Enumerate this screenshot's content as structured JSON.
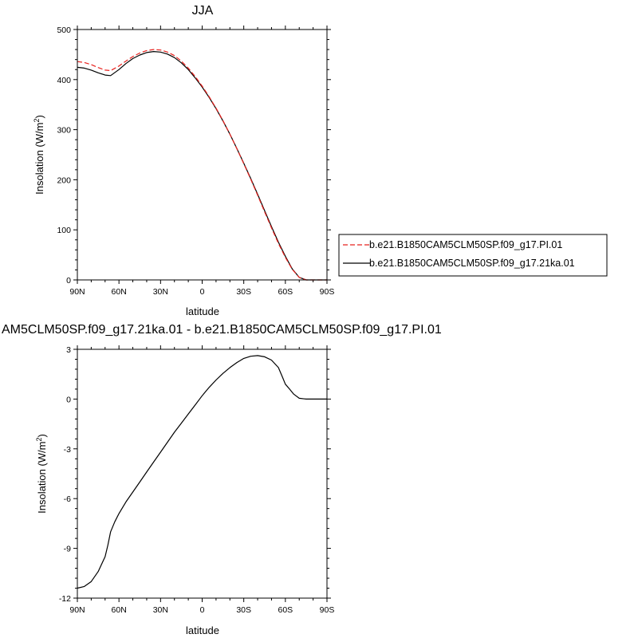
{
  "top_title": "JJA",
  "bottom_title": "AM5CLM50SP.f09_g17.21ka.01 - b.e21.B1850CAM5CLM50SP.f09_g17.PI.01",
  "chart_data": [
    {
      "type": "line",
      "title": "JJA",
      "xlabel": "latitude",
      "ylabel_main": "Insolation (W/m",
      "ylabel_sup": "2",
      "ylabel_close": ")",
      "xlim": [
        90,
        -90
      ],
      "ylim": [
        0,
        500
      ],
      "xtick_values": [
        90,
        60,
        30,
        0,
        -30,
        -60,
        -90
      ],
      "xtick_labels": [
        "90N",
        "60N",
        "30N",
        "0",
        "30S",
        "60S",
        "90S"
      ],
      "ytick_values": [
        0,
        100,
        200,
        300,
        400,
        500
      ],
      "ytick_labels": [
        "0",
        "100",
        "200",
        "300",
        "400",
        "500"
      ],
      "legend_position": "right",
      "series": [
        {
          "name": "b.e21.B1850CAM5CLM50SP.f09_g17.PI.01",
          "color": "#e8221e",
          "dash": "dashed",
          "x": [
            90,
            85,
            80,
            75,
            70,
            66,
            60,
            55,
            50,
            45,
            40,
            35,
            30,
            25,
            20,
            15,
            10,
            5,
            0,
            -5,
            -10,
            -15,
            -20,
            -25,
            -30,
            -35,
            -40,
            -45,
            -50,
            -55,
            -60,
            -65,
            -70,
            -75,
            -80,
            -85,
            -90
          ],
          "y": [
            436,
            434,
            430,
            424,
            419,
            418,
            427,
            437,
            446,
            453,
            458,
            460,
            459,
            455,
            448,
            437,
            423,
            406,
            387,
            366,
            343,
            318,
            291,
            262,
            232,
            201,
            169,
            136,
            104,
            73,
            45,
            21,
            5,
            0,
            0,
            0,
            0
          ]
        },
        {
          "name": "b.e21.B1850CAM5CLM50SP.f09_g17.21ka.01",
          "color": "#000000",
          "dash": "solid",
          "x": [
            90,
            85,
            80,
            75,
            70,
            66,
            60,
            55,
            50,
            45,
            40,
            35,
            30,
            25,
            20,
            15,
            10,
            5,
            0,
            -5,
            -10,
            -15,
            -20,
            -25,
            -30,
            -35,
            -40,
            -45,
            -50,
            -55,
            -60,
            -65,
            -70,
            -75,
            -80,
            -85,
            -90
          ],
          "y": [
            424.6,
            423,
            419,
            413.5,
            409,
            408,
            420,
            432,
            442,
            449,
            454,
            456,
            455,
            451,
            444,
            433.5,
            420,
            403.4,
            385,
            364.5,
            342,
            317.3,
            291,
            262.5,
            233,
            202.4,
            170.9,
            138.4,
            106.6,
            75.5,
            47.3,
            21.8,
            5.1,
            0,
            0,
            0,
            0
          ]
        }
      ]
    },
    {
      "type": "line",
      "title": "AM5CLM50SP.f09_g17.21ka.01 - b.e21.B1850CAM5CLM50SP.f09_g17.PI.01",
      "xlabel": "latitude",
      "ylabel_main": "Insolation (W/m",
      "ylabel_sup": "2",
      "ylabel_close": ")",
      "xlim": [
        90,
        -90
      ],
      "ylim": [
        -12,
        3
      ],
      "xtick_values": [
        90,
        60,
        30,
        0,
        -30,
        -60,
        -90
      ],
      "xtick_labels": [
        "90N",
        "60N",
        "30N",
        "0",
        "30S",
        "60S",
        "90S"
      ],
      "ytick_values": [
        -12,
        -9,
        -6,
        -3,
        0,
        3
      ],
      "ytick_labels": [
        "-12",
        "-9",
        "-6",
        "-3",
        "0",
        "3"
      ],
      "series": [
        {
          "color": "#000000",
          "dash": "solid",
          "x": [
            90,
            85,
            80,
            75,
            70,
            68,
            66,
            63,
            60,
            55,
            50,
            45,
            40,
            35,
            30,
            25,
            20,
            15,
            10,
            5,
            0,
            -5,
            -10,
            -15,
            -20,
            -25,
            -30,
            -35,
            -40,
            -45,
            -50,
            -55,
            -58,
            -60,
            -63,
            -66,
            -70,
            -75,
            -80,
            -85,
            -90
          ],
          "y": [
            -11.4,
            -11.3,
            -11.0,
            -10.4,
            -9.5,
            -8.8,
            -8.0,
            -7.4,
            -6.9,
            -6.2,
            -5.6,
            -5.0,
            -4.4,
            -3.8,
            -3.2,
            -2.6,
            -2.0,
            -1.45,
            -0.9,
            -0.35,
            0.2,
            0.7,
            1.15,
            1.55,
            1.9,
            2.2,
            2.45,
            2.58,
            2.62,
            2.55,
            2.35,
            1.9,
            1.3,
            0.9,
            0.6,
            0.3,
            0.05,
            0,
            0,
            0,
            0
          ]
        }
      ]
    }
  ]
}
